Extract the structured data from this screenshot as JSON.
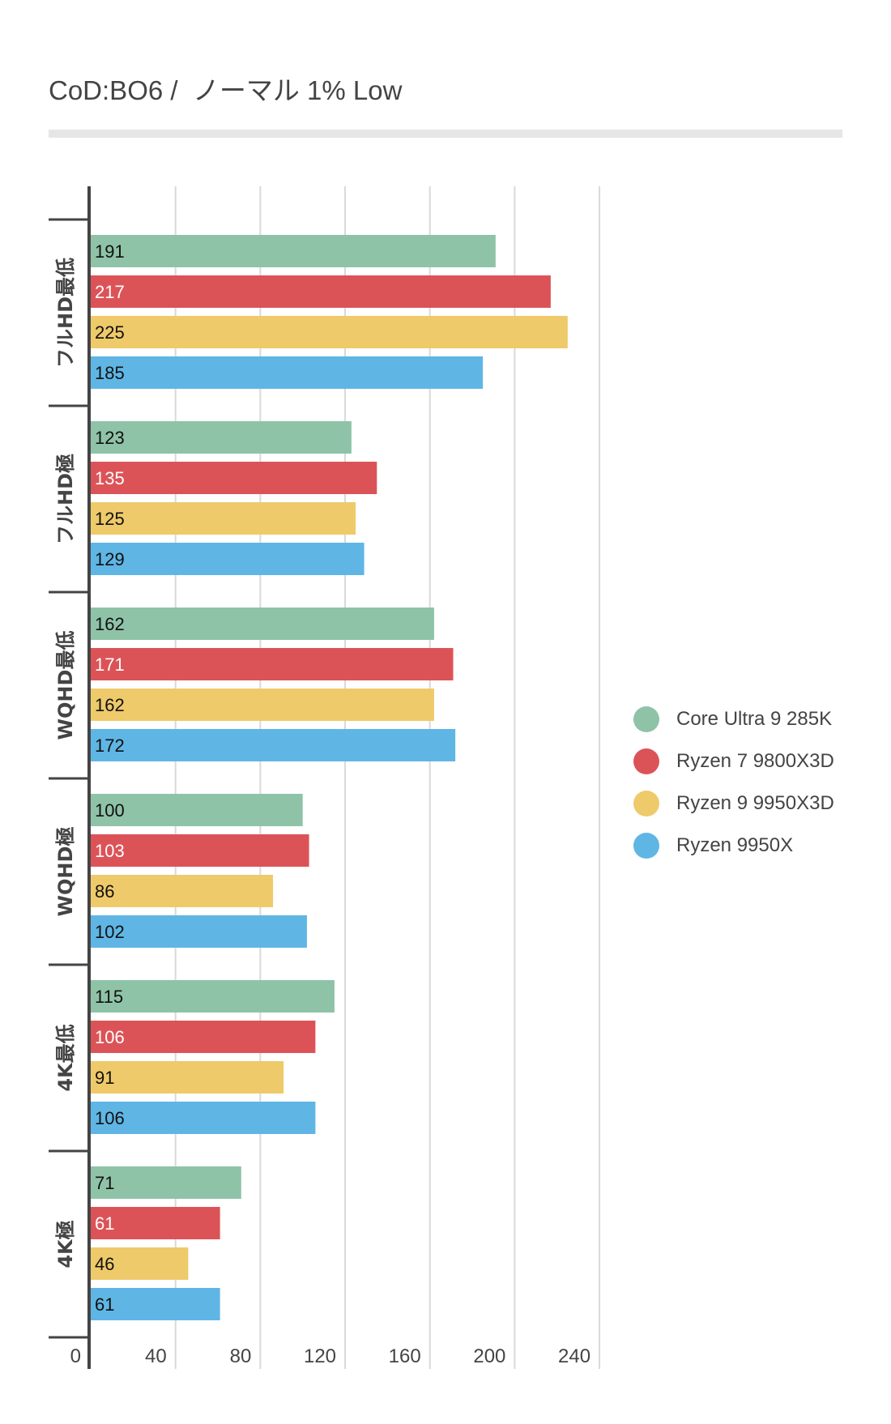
{
  "title": "CoD:BO6 /  ノーマル 1% Low",
  "legend": {
    "placement": "right",
    "items": [
      {
        "label": "Core Ultra 9 285K",
        "color": "#8fc3a8"
      },
      {
        "label": "Ryzen 7 9800X3D",
        "color": "#dc5357"
      },
      {
        "label": "Ryzen 9 9950X3D",
        "color": "#efca6a"
      },
      {
        "label": "Ryzen 9950X",
        "color": "#5fb6e5"
      }
    ]
  },
  "chart_data": {
    "type": "bar",
    "orientation": "horizontal",
    "title": "CoD:BO6 /  ノーマル 1% Low",
    "xlabel": "",
    "ylabel": "",
    "xlim": [
      0,
      240
    ],
    "xticks": [
      0,
      40,
      80,
      120,
      160,
      200,
      240
    ],
    "grid": true,
    "legend_placement": "right",
    "categories": [
      "フルHD最低",
      "フルHD極",
      "WQHD最低",
      "WQHD極",
      "4K最低",
      "4K極"
    ],
    "series": [
      {
        "name": "Core Ultra 9 285K",
        "color": "#8fc3a8",
        "label_color": "#111111",
        "values": [
          191,
          123,
          162,
          100,
          115,
          71
        ]
      },
      {
        "name": "Ryzen 7 9800X3D",
        "color": "#dc5357",
        "label_color": "#ffffff",
        "values": [
          217,
          135,
          171,
          103,
          106,
          61
        ]
      },
      {
        "name": "Ryzen 9 9950X3D",
        "color": "#efca6a",
        "label_color": "#111111",
        "values": [
          225,
          125,
          162,
          86,
          91,
          46
        ]
      },
      {
        "name": "Ryzen 9950X",
        "color": "#5fb6e5",
        "label_color": "#111111",
        "values": [
          185,
          129,
          172,
          102,
          106,
          61
        ]
      }
    ]
  }
}
